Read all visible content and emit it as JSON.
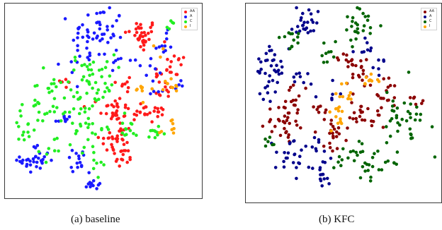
{
  "captions": {
    "a": "(a)  baseline",
    "b": "(b)  KFC"
  },
  "colors": {
    "baseline": {
      "AA": "#ff1a1a",
      "A": "#1a1aff",
      "C": "#22ee22",
      "I": "#ffa500"
    },
    "kfc": {
      "AA": "#8b0000",
      "A": "#00008b",
      "C": "#006400",
      "I": "#ffa500"
    }
  },
  "chart_data": [
    {
      "type": "scatter",
      "title": "",
      "caption": "(a)  baseline",
      "xlabel": "",
      "ylabel": "",
      "xlim": [
        0,
        100
      ],
      "ylim": [
        0,
        100
      ],
      "grid": false,
      "legend_position": "top-right",
      "legend": [
        "AA",
        "A",
        "C",
        "I"
      ],
      "series": [
        {
          "name": "AA",
          "color": "#ff1a1a",
          "clusters": [
            {
              "x": 70,
              "y": 85,
              "n": 34,
              "spread": 4.5
            },
            {
              "x": 88,
              "y": 69,
              "n": 14,
              "spread": 3
            },
            {
              "x": 82,
              "y": 63,
              "n": 6,
              "spread": 3
            },
            {
              "x": 62,
              "y": 60,
              "n": 8,
              "spread": 3
            },
            {
              "x": 82,
              "y": 56,
              "n": 10,
              "spread": 3
            },
            {
              "x": 56,
              "y": 45,
              "n": 30,
              "spread": 4
            },
            {
              "x": 70,
              "y": 44,
              "n": 14,
              "spread": 3
            },
            {
              "x": 79,
              "y": 44,
              "n": 10,
              "spread": 3
            },
            {
              "x": 57,
              "y": 29,
              "n": 30,
              "spread": 4.5
            },
            {
              "x": 60,
              "y": 19,
              "n": 12,
              "spread": 3
            },
            {
              "x": 30,
              "y": 60,
              "n": 5,
              "spread": 2
            }
          ]
        },
        {
          "name": "A",
          "color": "#1a1aff",
          "clusters": [
            {
              "x": 47,
              "y": 87,
              "n": 50,
              "spread": 7
            },
            {
              "x": 82,
              "y": 80,
              "n": 10,
              "spread": 3.5
            },
            {
              "x": 36,
              "y": 73,
              "n": 8,
              "spread": 4
            },
            {
              "x": 53,
              "y": 72,
              "n": 6,
              "spread": 3
            },
            {
              "x": 68,
              "y": 68,
              "n": 8,
              "spread": 4
            },
            {
              "x": 76,
              "y": 58,
              "n": 6,
              "spread": 3
            },
            {
              "x": 30,
              "y": 40,
              "n": 8,
              "spread": 3
            },
            {
              "x": 14,
              "y": 18,
              "n": 32,
              "spread": 4
            },
            {
              "x": 36,
              "y": 19,
              "n": 14,
              "spread": 3
            },
            {
              "x": 45,
              "y": 6,
              "n": 12,
              "spread": 3
            },
            {
              "x": 90,
              "y": 58,
              "n": 4,
              "spread": 2
            }
          ]
        },
        {
          "name": "C",
          "color": "#22ee22",
          "clusters": [
            {
              "x": 44,
              "y": 63,
              "n": 40,
              "spread": 6
            },
            {
              "x": 19,
              "y": 50,
              "n": 30,
              "spread": 7
            },
            {
              "x": 10,
              "y": 35,
              "n": 16,
              "spread": 5
            },
            {
              "x": 22,
              "y": 24,
              "n": 6,
              "spread": 3
            },
            {
              "x": 40,
              "y": 45,
              "n": 22,
              "spread": 5
            },
            {
              "x": 44,
              "y": 30,
              "n": 18,
              "spread": 5
            },
            {
              "x": 64,
              "y": 36,
              "n": 12,
              "spread": 4
            },
            {
              "x": 77,
              "y": 33,
              "n": 10,
              "spread": 3
            },
            {
              "x": 86,
              "y": 89,
              "n": 5,
              "spread": 2
            },
            {
              "x": 48,
              "y": 14,
              "n": 6,
              "spread": 3
            }
          ]
        },
        {
          "name": "I",
          "color": "#ffa500",
          "clusters": [
            {
              "x": 86,
              "y": 58,
              "n": 10,
              "spread": 3
            },
            {
              "x": 71,
              "y": 56,
              "n": 8,
              "spread": 2.5
            },
            {
              "x": 86,
              "y": 36,
              "n": 8,
              "spread": 3
            },
            {
              "x": 80,
              "y": 76,
              "n": 3,
              "spread": 2
            }
          ]
        }
      ]
    },
    {
      "type": "scatter",
      "title": "",
      "caption": "(b)  KFC",
      "xlabel": "",
      "ylabel": "",
      "xlim": [
        0,
        100
      ],
      "ylim": [
        0,
        100
      ],
      "grid": false,
      "legend_position": "top-right",
      "legend": [
        "AA",
        "A",
        "C",
        "I"
      ],
      "series": [
        {
          "name": "AA",
          "color": "#8b0000",
          "clusters": [
            {
              "x": 52,
              "y": 73,
              "n": 12,
              "spread": 3.5
            },
            {
              "x": 60,
              "y": 65,
              "n": 16,
              "spread": 4
            },
            {
              "x": 71,
              "y": 52,
              "n": 10,
              "spread": 3
            },
            {
              "x": 21,
              "y": 50,
              "n": 12,
              "spread": 4
            },
            {
              "x": 18,
              "y": 40,
              "n": 30,
              "spread": 5
            },
            {
              "x": 56,
              "y": 44,
              "n": 14,
              "spread": 3.5
            },
            {
              "x": 67,
              "y": 42,
              "n": 10,
              "spread": 3
            },
            {
              "x": 44,
              "y": 33,
              "n": 20,
              "spread": 4
            },
            {
              "x": 37,
              "y": 46,
              "n": 8,
              "spread": 3
            },
            {
              "x": 88,
              "y": 53,
              "n": 6,
              "spread": 3
            },
            {
              "x": 76,
              "y": 60,
              "n": 6,
              "spread": 3
            }
          ]
        },
        {
          "name": "A",
          "color": "#00008b",
          "clusters": [
            {
              "x": 30,
              "y": 91,
              "n": 24,
              "spread": 4
            },
            {
              "x": 11,
              "y": 68,
              "n": 34,
              "spread": 5
            },
            {
              "x": 28,
              "y": 63,
              "n": 8,
              "spread": 3
            },
            {
              "x": 62,
              "y": 79,
              "n": 8,
              "spread": 3
            },
            {
              "x": 69,
              "y": 72,
              "n": 6,
              "spread": 3
            },
            {
              "x": 22,
              "y": 20,
              "n": 22,
              "spread": 5
            },
            {
              "x": 38,
              "y": 13,
              "n": 16,
              "spread": 4
            },
            {
              "x": 34,
              "y": 28,
              "n": 8,
              "spread": 3
            },
            {
              "x": 43,
              "y": 56,
              "n": 6,
              "spread": 3
            },
            {
              "x": 8,
              "y": 53,
              "n": 4,
              "spread": 2
            }
          ]
        },
        {
          "name": "C",
          "color": "#006400",
          "clusters": [
            {
              "x": 57,
              "y": 90,
              "n": 26,
              "spread": 5
            },
            {
              "x": 20,
              "y": 84,
              "n": 12,
              "spread": 4
            },
            {
              "x": 42,
              "y": 76,
              "n": 8,
              "spread": 3
            },
            {
              "x": 81,
              "y": 45,
              "n": 26,
              "spread": 6
            },
            {
              "x": 88,
              "y": 35,
              "n": 10,
              "spread": 4
            },
            {
              "x": 58,
              "y": 24,
              "n": 14,
              "spread": 4
            },
            {
              "x": 75,
              "y": 22,
              "n": 10,
              "spread": 4
            },
            {
              "x": 61,
              "y": 13,
              "n": 8,
              "spread": 3
            },
            {
              "x": 11,
              "y": 30,
              "n": 6,
              "spread": 3
            },
            {
              "x": 50,
              "y": 19,
              "n": 6,
              "spread": 3
            }
          ]
        },
        {
          "name": "I",
          "color": "#ffa500",
          "clusters": [
            {
              "x": 66,
              "y": 62,
              "n": 10,
              "spread": 3
            },
            {
              "x": 50,
              "y": 53,
              "n": 10,
              "spread": 3
            },
            {
              "x": 47,
              "y": 44,
              "n": 12,
              "spread": 3
            }
          ]
        }
      ]
    }
  ]
}
